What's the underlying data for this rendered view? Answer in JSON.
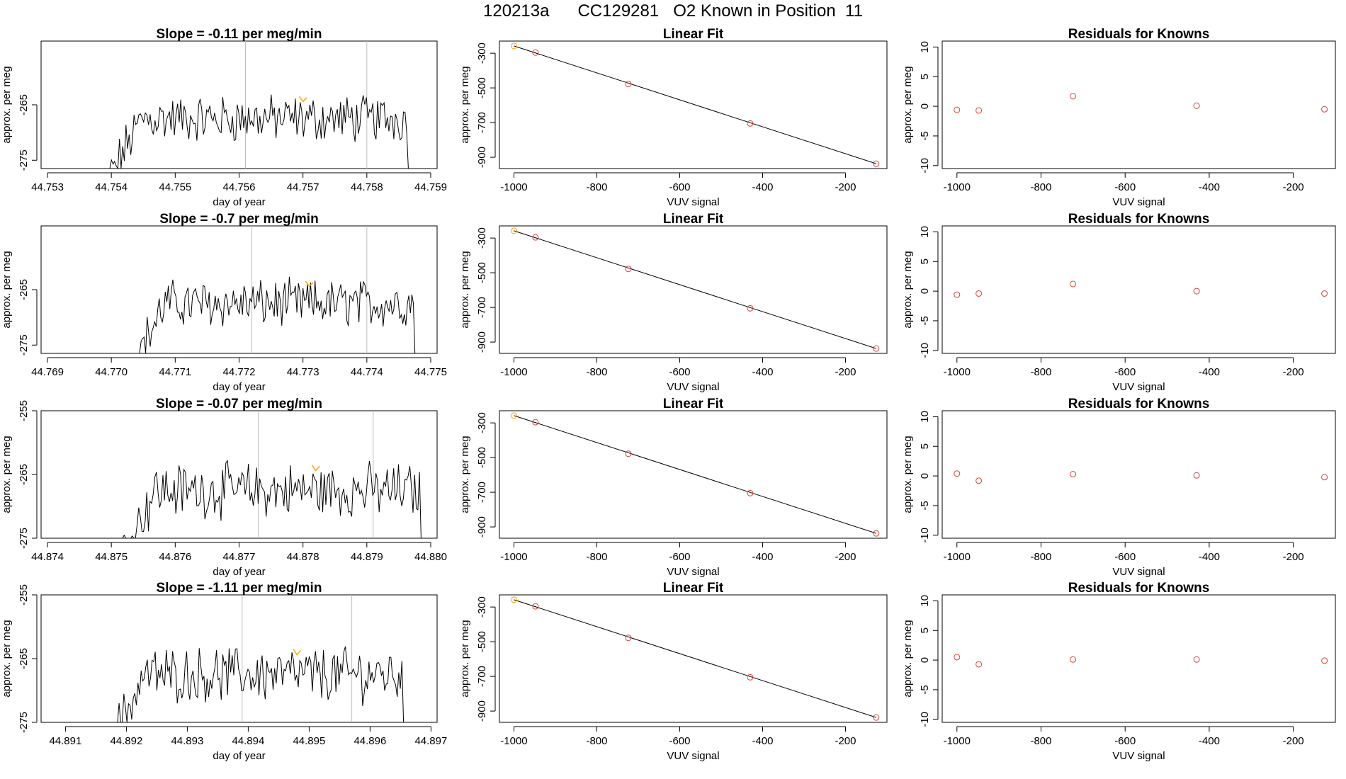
{
  "page_title": "120213a      CC129281   O2 Known in Position  11",
  "colors": {
    "trace": "#000000",
    "highlight": "#ffa500",
    "knowns": "#d9413a",
    "vline": "#bebebe",
    "fitline": "#000000"
  },
  "chart_data": [
    {
      "type": "line",
      "row": 0,
      "title": "Slope =  -0.11  per meg/min",
      "xlabel": "day of year",
      "ylabel": "approx. per meg",
      "xlim": [
        44.7529,
        44.7591
      ],
      "ylim": [
        -276.5,
        -253.5
      ],
      "xticks": [
        "44.753",
        "44.754",
        "44.755",
        "44.756",
        "44.757",
        "44.758",
        "44.759"
      ],
      "yticks": [
        "-265",
        "-275"
      ],
      "trace_range": [
        44.7539,
        44.7587
      ],
      "vlines": [
        44.7561,
        44.758
      ],
      "highlight_x": 44.757
    },
    {
      "type": "line",
      "row": 1,
      "title": "Slope =  -0.7  per meg/min",
      "xlabel": "day of year",
      "ylabel": "approx. per meg",
      "xlim": [
        44.7689,
        44.7751
      ],
      "ylim": [
        -276.5,
        -253.5
      ],
      "xticks": [
        "44.769",
        "44.770",
        "44.771",
        "44.772",
        "44.773",
        "44.774",
        "44.775"
      ],
      "yticks": [
        "-265",
        "-275"
      ],
      "trace_range": [
        44.7703,
        44.7748
      ],
      "vlines": [
        44.7722,
        44.774
      ],
      "highlight_x": 44.7731
    },
    {
      "type": "line",
      "row": 2,
      "title": "Slope =  -0.07  per meg/min",
      "xlabel": "day of year",
      "ylabel": "approx. per meg",
      "xlim": [
        44.8739,
        44.8801
      ],
      "ylim": [
        -275,
        -255
      ],
      "xticks": [
        "44.874",
        "44.875",
        "44.876",
        "44.877",
        "44.878",
        "44.879",
        "44.880"
      ],
      "yticks": [
        "-255",
        "-265",
        "-275"
      ],
      "trace_range": [
        44.8751,
        44.8799
      ],
      "vlines": [
        44.8773,
        44.8791
      ],
      "highlight_x": 44.8782
    },
    {
      "type": "line",
      "row": 3,
      "title": "Slope =  -1.11  per meg/min",
      "xlabel": "day of year",
      "ylabel": "approx. per meg",
      "xlim": [
        44.8906,
        44.8971
      ],
      "ylim": [
        -275,
        -255
      ],
      "xticks": [
        "44.891",
        "44.892",
        "44.893",
        "44.894",
        "44.895",
        "44.896",
        "44.897"
      ],
      "yticks": [
        "-255",
        "-265",
        "-275"
      ],
      "trace_range": [
        44.8917,
        44.8966
      ],
      "vlines": [
        44.8939,
        44.8957
      ],
      "highlight_x": 44.8948
    },
    {
      "type": "scatter",
      "row": 0,
      "title": "Linear Fit",
      "xlabel": "VUV signal",
      "ylabel": "approx. per meg",
      "xlim": [
        -1035,
        -100
      ],
      "ylim": [
        -965,
        -230
      ],
      "xticks": [
        -1000,
        -800,
        -600,
        -400,
        -200
      ],
      "yticks": [
        -300,
        -500,
        -700,
        -900
      ],
      "x": [
        -1000,
        -948,
        -724,
        -430,
        -126
      ],
      "y": [
        -258,
        -296,
        -478,
        -705,
        -937
      ],
      "fit": [
        [
          -1000,
          -258
        ],
        [
          -126,
          -937
        ]
      ]
    },
    {
      "type": "scatter",
      "row": 1,
      "title": "Linear Fit",
      "xlabel": "VUV signal",
      "ylabel": "approx. per meg",
      "xlim": [
        -1035,
        -100
      ],
      "ylim": [
        -965,
        -230
      ],
      "xticks": [
        -1000,
        -800,
        -600,
        -400,
        -200
      ],
      "yticks": [
        -300,
        -500,
        -700,
        -900
      ],
      "x": [
        -1000,
        -948,
        -724,
        -430,
        -126
      ],
      "y": [
        -258,
        -296,
        -478,
        -705,
        -937
      ],
      "fit": [
        [
          -1000,
          -258
        ],
        [
          -126,
          -937
        ]
      ]
    },
    {
      "type": "scatter",
      "row": 2,
      "title": "Linear Fit",
      "xlabel": "VUV signal",
      "ylabel": "approx. per meg",
      "xlim": [
        -1035,
        -100
      ],
      "ylim": [
        -965,
        -230
      ],
      "xticks": [
        -1000,
        -800,
        -600,
        -400,
        -200
      ],
      "yticks": [
        -300,
        -500,
        -700,
        -900
      ],
      "x": [
        -1000,
        -948,
        -724,
        -430,
        -126
      ],
      "y": [
        -258,
        -296,
        -478,
        -705,
        -937
      ],
      "fit": [
        [
          -1000,
          -258
        ],
        [
          -126,
          -937
        ]
      ]
    },
    {
      "type": "scatter",
      "row": 3,
      "title": "Linear Fit",
      "xlabel": "VUV signal",
      "ylabel": "approx. per meg",
      "xlim": [
        -1035,
        -100
      ],
      "ylim": [
        -965,
        -230
      ],
      "xticks": [
        -1000,
        -800,
        -600,
        -400,
        -200
      ],
      "yticks": [
        -300,
        -500,
        -700,
        -900
      ],
      "x": [
        -1000,
        -948,
        -724,
        -430,
        -126
      ],
      "y": [
        -258,
        -296,
        -478,
        -705,
        -937
      ],
      "fit": [
        [
          -1000,
          -258
        ],
        [
          -126,
          -937
        ]
      ]
    },
    {
      "type": "scatter",
      "row": 0,
      "title": "Residuals for Knowns",
      "xlabel": "VUV signal",
      "ylabel": "approx. per meg",
      "xlim": [
        -1035,
        -100
      ],
      "ylim": [
        -10.5,
        11
      ],
      "xticks": [
        -1000,
        -800,
        -600,
        -400,
        -200
      ],
      "yticks": [
        10,
        5,
        0,
        -5,
        -10
      ],
      "x": [
        -1000,
        -948,
        -724,
        -430,
        -126
      ],
      "y": [
        -0.6,
        -0.7,
        1.7,
        0.1,
        -0.5
      ]
    },
    {
      "type": "scatter",
      "row": 1,
      "title": "Residuals for Knowns",
      "xlabel": "VUV signal",
      "ylabel": "approx. per meg",
      "xlim": [
        -1035,
        -100
      ],
      "ylim": [
        -10.5,
        11
      ],
      "xticks": [
        -1000,
        -800,
        -600,
        -400,
        -200
      ],
      "yticks": [
        10,
        5,
        0,
        -5,
        -10
      ],
      "x": [
        -1000,
        -948,
        -724,
        -430,
        -126
      ],
      "y": [
        -0.6,
        -0.4,
        1.2,
        0.0,
        -0.4
      ]
    },
    {
      "type": "scatter",
      "row": 2,
      "title": "Residuals for Knowns",
      "xlabel": "VUV signal",
      "ylabel": "approx. per meg",
      "xlim": [
        -1035,
        -100
      ],
      "ylim": [
        -10.5,
        11
      ],
      "xticks": [
        -1000,
        -800,
        -600,
        -400,
        -200
      ],
      "yticks": [
        10,
        5,
        0,
        -5,
        -10
      ],
      "x": [
        -1000,
        -948,
        -724,
        -430,
        -126
      ],
      "y": [
        0.4,
        -0.8,
        0.3,
        0.1,
        -0.2
      ]
    },
    {
      "type": "scatter",
      "row": 3,
      "title": "Residuals for Knowns",
      "xlabel": "VUV signal",
      "ylabel": "approx. per meg",
      "xlim": [
        -1035,
        -100
      ],
      "ylim": [
        -10.5,
        11
      ],
      "xticks": [
        -1000,
        -800,
        -600,
        -400,
        -200
      ],
      "yticks": [
        10,
        5,
        0,
        -5,
        -10
      ],
      "x": [
        -1000,
        -948,
        -724,
        -430,
        -126
      ],
      "y": [
        0.5,
        -0.7,
        0.1,
        0.1,
        -0.1
      ]
    }
  ]
}
